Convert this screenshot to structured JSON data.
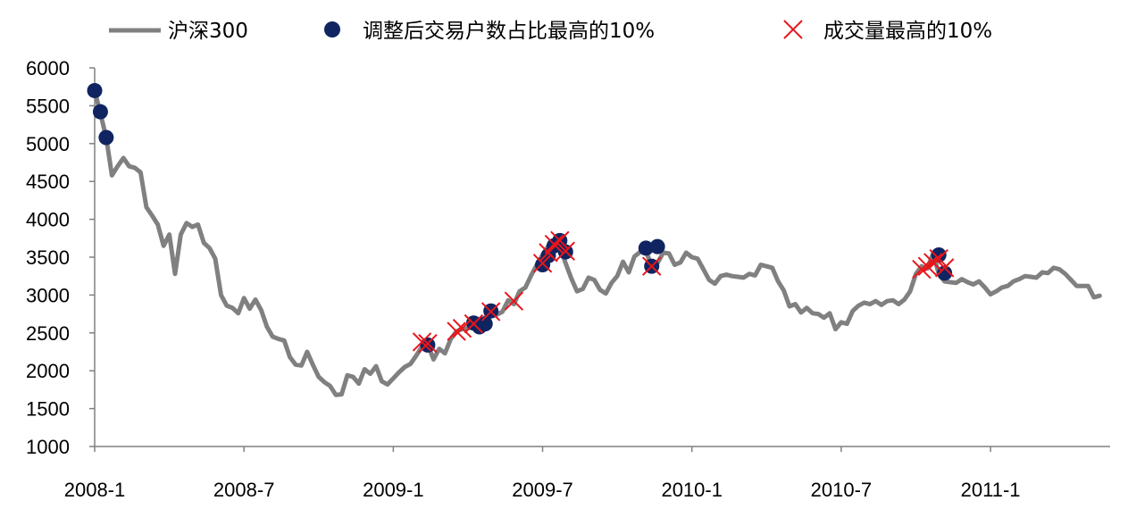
{
  "chart_data": {
    "type": "line",
    "title": "",
    "xlabel": "",
    "ylabel": "",
    "ylim": [
      1000,
      6000
    ],
    "yticks": [
      1000,
      1500,
      2000,
      2500,
      3000,
      3500,
      4000,
      4500,
      5000,
      5500,
      6000
    ],
    "xticks": [
      {
        "label": "2008-1",
        "week": 0
      },
      {
        "label": "2008-7",
        "week": 26
      },
      {
        "label": "2009-1",
        "week": 52
      },
      {
        "label": "2009-7",
        "week": 78
      },
      {
        "label": "2010-1",
        "week": 104
      },
      {
        "label": "2010-7",
        "week": 130
      },
      {
        "label": "2011-1",
        "week": 156
      }
    ],
    "legend": {
      "placement": "top",
      "items": [
        {
          "name": "沪深300",
          "marker": "line",
          "color": "#808080"
        },
        {
          "name": "调整后交易户数占比最高的10%",
          "marker": "circle",
          "color": "#0f2461"
        },
        {
          "name": "成交量最高的10%",
          "marker": "x",
          "color": "#e8151b"
        }
      ]
    },
    "series": [
      {
        "name": "沪深300",
        "color": "#808080",
        "values": [
          5700,
          5400,
          5080,
          4580,
          4700,
          4810,
          4700,
          4680,
          4620,
          4160,
          4050,
          3930,
          3650,
          3800,
          3280,
          3800,
          3950,
          3900,
          3930,
          3690,
          3620,
          3480,
          3000,
          2860,
          2830,
          2760,
          2960,
          2820,
          2940,
          2800,
          2580,
          2450,
          2420,
          2400,
          2180,
          2080,
          2070,
          2250,
          2080,
          1920,
          1850,
          1800,
          1680,
          1690,
          1940,
          1920,
          1830,
          2020,
          1960,
          2060,
          1860,
          1820,
          1900,
          1980,
          2050,
          2090,
          2200,
          2320,
          2350,
          2150,
          2290,
          2230,
          2420,
          2520,
          2550,
          2560,
          2660,
          2620,
          2700,
          2800,
          2740,
          2780,
          2930,
          2880,
          3050,
          3100,
          3260,
          3400,
          3530,
          3650,
          3720,
          3650,
          3420,
          3220,
          3050,
          3080,
          3230,
          3200,
          3070,
          3020,
          3160,
          3250,
          3440,
          3300,
          3510,
          3570,
          3580,
          3380,
          3420,
          3560,
          3550,
          3400,
          3430,
          3560,
          3500,
          3480,
          3340,
          3200,
          3150,
          3250,
          3270,
          3250,
          3240,
          3230,
          3280,
          3260,
          3400,
          3380,
          3360,
          3180,
          3060,
          2850,
          2880,
          2770,
          2830,
          2760,
          2750,
          2700,
          2760,
          2550,
          2640,
          2620,
          2790,
          2860,
          2900,
          2880,
          2920,
          2870,
          2920,
          2930,
          2880,
          2940,
          3050,
          3280,
          3380,
          3350,
          3550,
          3280,
          3180,
          3170,
          3160,
          3210,
          3170,
          3140,
          3180,
          3100,
          3010,
          3050,
          3100,
          3120,
          3180,
          3210,
          3250,
          3240,
          3230,
          3300,
          3290,
          3360,
          3340,
          3280,
          3200,
          3120,
          3120,
          3120,
          2970,
          2990
        ]
      },
      {
        "name": "调整后交易户数占比最高的10%",
        "type": "scatter",
        "color": "#0f2461",
        "points": [
          [
            0,
            5700
          ],
          [
            1,
            5420
          ],
          [
            2,
            5080
          ],
          [
            58,
            2340
          ],
          [
            66,
            2630
          ],
          [
            67,
            2580
          ],
          [
            68,
            2620
          ],
          [
            69,
            2790
          ],
          [
            78,
            3400
          ],
          [
            79,
            3520
          ],
          [
            80,
            3650
          ],
          [
            81,
            3720
          ],
          [
            82,
            3570
          ],
          [
            96,
            3620
          ],
          [
            97,
            3380
          ],
          [
            98,
            3640
          ],
          [
            147,
            3530
          ],
          [
            148,
            3290
          ]
        ]
      },
      {
        "name": "成交量最高的10%",
        "type": "scatter",
        "color": "#e8151b",
        "points": [
          [
            57,
            2380
          ],
          [
            58,
            2360
          ],
          [
            63,
            2520
          ],
          [
            64,
            2560
          ],
          [
            66,
            2620
          ],
          [
            69,
            2780
          ],
          [
            73,
            2920
          ],
          [
            78,
            3420
          ],
          [
            79,
            3560
          ],
          [
            80,
            3670
          ],
          [
            81,
            3720
          ],
          [
            82,
            3580
          ],
          [
            97,
            3380
          ],
          [
            144,
            3340
          ],
          [
            145,
            3380
          ],
          [
            146,
            3430
          ],
          [
            147,
            3480
          ],
          [
            148,
            3360
          ]
        ]
      }
    ]
  }
}
